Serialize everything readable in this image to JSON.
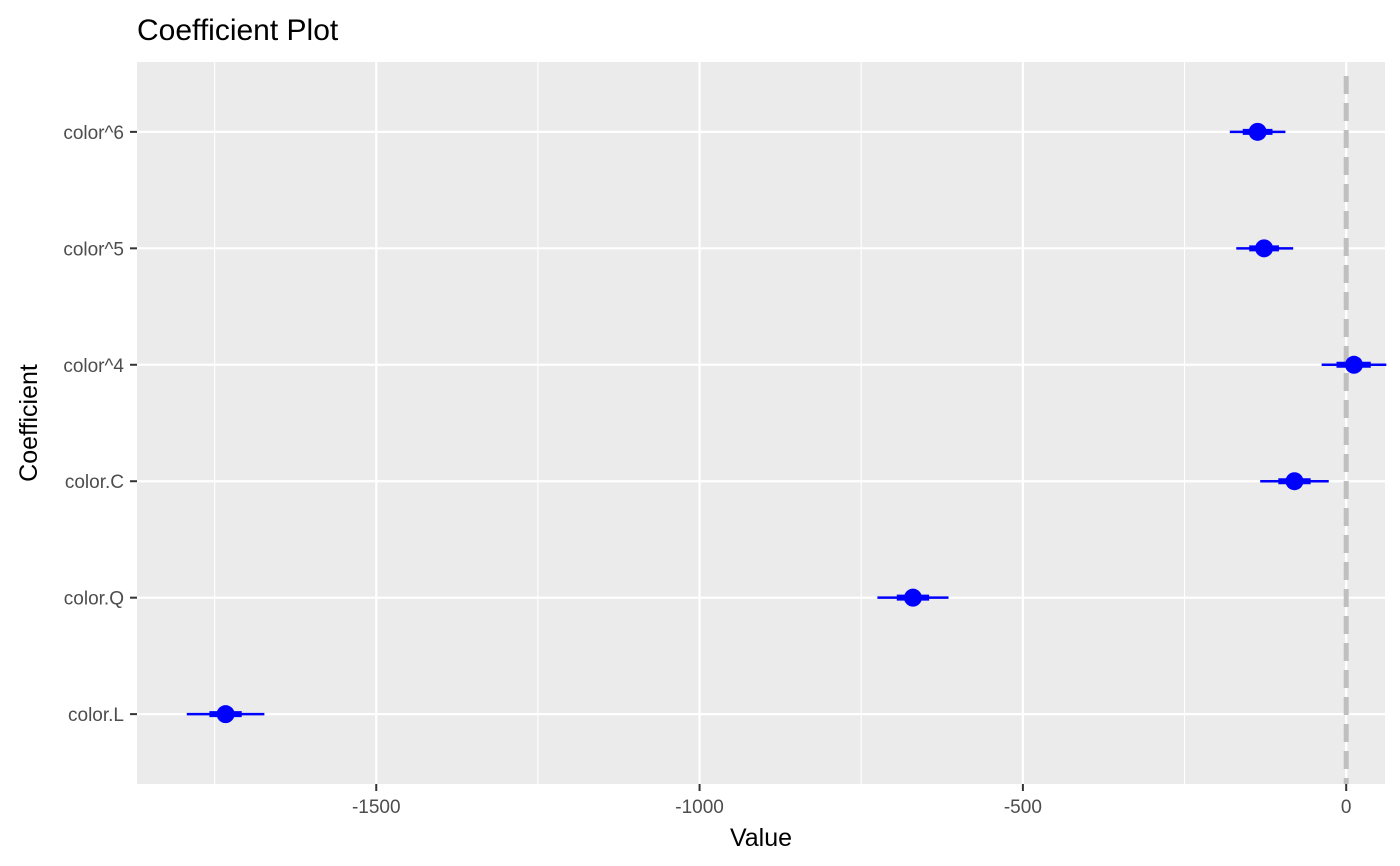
{
  "chart_data": {
    "type": "scatter",
    "subtype": "coefficient-plot",
    "title": "Coefficient Plot",
    "xlabel": "Value",
    "ylabel": "Coefficient",
    "xlim": [
      -1870,
      60
    ],
    "x_ticks": [
      -1500,
      -1000,
      -500,
      0
    ],
    "x_tick_labels": [
      "-1500",
      "-1000",
      "-500",
      "0"
    ],
    "x_minor_ticks": [
      -1750,
      -1250,
      -750,
      -250
    ],
    "grid": true,
    "legend": "none",
    "reference_line": {
      "value": 0,
      "style": "dashed",
      "color": "#bfbfbf"
    },
    "point_color": "#0000ff",
    "panel_background": "#ebebeb",
    "gridline_color": "#ffffff",
    "categories": [
      "color.L",
      "color.Q",
      "color.C",
      "color^4",
      "color^5",
      "color^6"
    ],
    "coefficients": [
      {
        "name": "color.L",
        "value": -1733,
        "inner": [
          -1758,
          -1708
        ],
        "outer": [
          -1793,
          -1673
        ]
      },
      {
        "name": "color.Q",
        "value": -670,
        "inner": [
          -695,
          -645
        ],
        "outer": [
          -725,
          -615
        ]
      },
      {
        "name": "color.C",
        "value": -80,
        "inner": [
          -105,
          -55
        ],
        "outer": [
          -133,
          -27
        ]
      },
      {
        "name": "color^4",
        "value": 12,
        "inner": [
          -15,
          38
        ],
        "outer": [
          -38,
          62
        ]
      },
      {
        "name": "color^5",
        "value": -127,
        "inner": [
          -150,
          -104
        ],
        "outer": [
          -170,
          -82
        ]
      },
      {
        "name": "color^6",
        "value": -137,
        "inner": [
          -160,
          -114
        ],
        "outer": [
          -180,
          -94
        ]
      }
    ]
  }
}
